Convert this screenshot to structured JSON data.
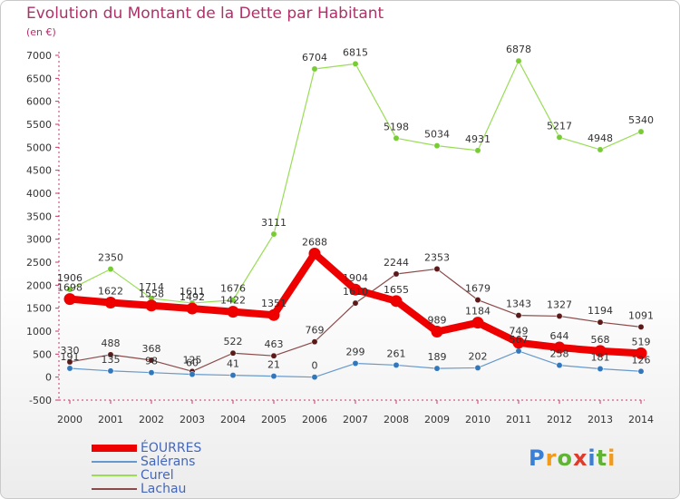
{
  "title": "Evolution du Montant de la Dette par Habitant",
  "subtitle": "(en €)",
  "logo": {
    "text": "Proxiti",
    "colors": [
      "#3a7fd6",
      "#f29a1a",
      "#5fb533",
      "#e23a2a",
      "#3a7fd6",
      "#5fb533",
      "#f29a1a"
    ]
  },
  "chart_data": {
    "type": "line",
    "x": [
      "2000",
      "2001",
      "2002",
      "2003",
      "2004",
      "2005",
      "2006",
      "2007",
      "2008",
      "2009",
      "2010",
      "2011",
      "2012",
      "2013",
      "2014"
    ],
    "ylim": [
      -500,
      7000
    ],
    "yticks": [
      -500,
      0,
      500,
      1000,
      1500,
      2000,
      2500,
      3000,
      3500,
      4000,
      4500,
      5000,
      5500,
      6000,
      6500,
      7000
    ],
    "grid": false,
    "legend_position": "bottom-left",
    "series": [
      {
        "name": "Curel",
        "color": "#99dd55",
        "marker": "#77cc33",
        "values": [
          1906,
          2350,
          1714,
          1611,
          1676,
          3111,
          6704,
          6815,
          5198,
          5034,
          4931,
          6878,
          5217,
          4948,
          5340
        ],
        "labels": [
          "1906",
          "2350",
          "1714",
          "1611",
          "1676",
          "3111",
          "6704",
          "6815",
          "5198",
          "5034",
          "4931",
          "6878",
          "5217",
          "4948",
          "5340"
        ]
      },
      {
        "name": "Lachau",
        "color": "#8b4a4a",
        "marker": "#5a1a1a",
        "values": [
          330,
          488,
          368,
          125,
          522,
          463,
          769,
          1610,
          2244,
          2353,
          1679,
          1343,
          1327,
          1194,
          1091
        ],
        "labels": [
          "330",
          "488",
          "368",
          "125",
          "522",
          "463",
          "769",
          "1610",
          "2244",
          "2353",
          "1679",
          "1343",
          "1327",
          "1194",
          "1091"
        ]
      },
      {
        "name": "Salérans",
        "color": "#6699cc",
        "marker": "#3377bb",
        "values": [
          191,
          135,
          98,
          60,
          41,
          21,
          0,
          299,
          261,
          189,
          202,
          567,
          258,
          181,
          126
        ],
        "labels": [
          "191",
          "135",
          "98",
          "60",
          "41",
          "21",
          "0",
          "299",
          "261",
          "189",
          "202",
          "567",
          "258",
          "181",
          "126"
        ]
      },
      {
        "name": "ÉOURRES",
        "color": "#ee0000",
        "marker": "#ee0000",
        "values": [
          1698,
          1622,
          1558,
          1492,
          1422,
          1351,
          2688,
          1904,
          1655,
          989,
          1184,
          749,
          644,
          568,
          519
        ],
        "labels": [
          "1698",
          "1622",
          "1558",
          "1492",
          "1422",
          "1351",
          "2688",
          "1904",
          "1655",
          "989",
          "1184",
          "749",
          "644",
          "568",
          "519"
        ]
      }
    ],
    "legend_order": [
      "ÉOURRES",
      "Salérans",
      "Curel",
      "Lachau"
    ]
  }
}
